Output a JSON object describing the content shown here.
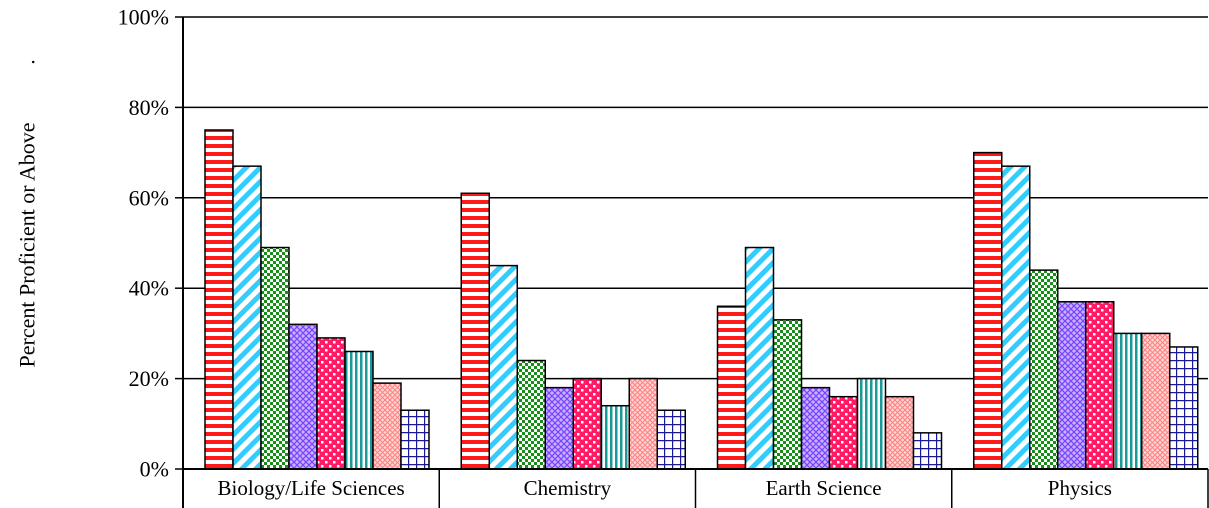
{
  "chart_data": {
    "type": "bar",
    "title": "",
    "xlabel": "",
    "ylabel": "Percent Proficient or Above",
    "ylabel_suffix": ".",
    "ylim": [
      0,
      100
    ],
    "yticks": [
      0,
      20,
      40,
      60,
      80,
      100
    ],
    "ytick_labels": [
      "0%",
      "20%",
      "40%",
      "60%",
      "80%",
      "100%"
    ],
    "grid": true,
    "legend": "none",
    "categories": [
      "Biology/Life Sciences",
      "Chemistry",
      "Earth Science",
      "Physics"
    ],
    "series": [
      {
        "values": [
          75,
          61,
          36,
          70
        ],
        "color": "#ff1a1a",
        "pattern": "hstripe"
      },
      {
        "values": [
          67,
          45,
          49,
          67
        ],
        "color": "#33ccff",
        "pattern": "diag"
      },
      {
        "values": [
          49,
          24,
          33,
          44
        ],
        "color": "#1a8c1a",
        "pattern": "checker"
      },
      {
        "values": [
          32,
          18,
          18,
          37
        ],
        "color": "#9966ff",
        "pattern": "diamond"
      },
      {
        "values": [
          29,
          20,
          16,
          37
        ],
        "color": "#ff1a66",
        "pattern": "dots"
      },
      {
        "values": [
          26,
          14,
          20,
          30
        ],
        "color": "#1a9999",
        "pattern": "vstripe"
      },
      {
        "values": [
          19,
          20,
          16,
          30
        ],
        "color": "#ff8080",
        "pattern": "fine"
      },
      {
        "values": [
          13,
          13,
          8,
          27
        ],
        "color": "#1a1a99",
        "pattern": "grid"
      }
    ]
  }
}
